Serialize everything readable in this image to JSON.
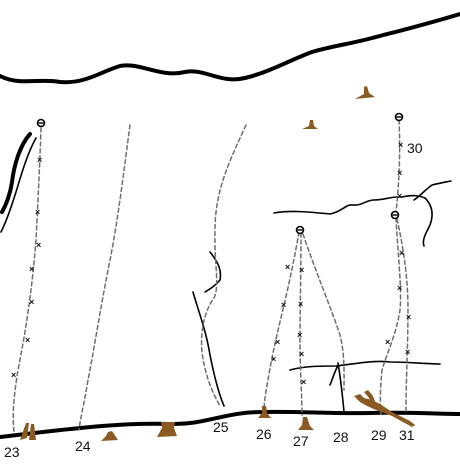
{
  "route_numbers": [
    "23",
    "24",
    "25",
    "26",
    "27",
    "28",
    "29",
    "30",
    "31"
  ],
  "colors": {
    "rock_line": "#000000",
    "route_line": "#6e6e6e",
    "tree": "#8a5a22"
  },
  "icons": [
    "anchor-icon",
    "bolt-icon",
    "tree-icon"
  ]
}
